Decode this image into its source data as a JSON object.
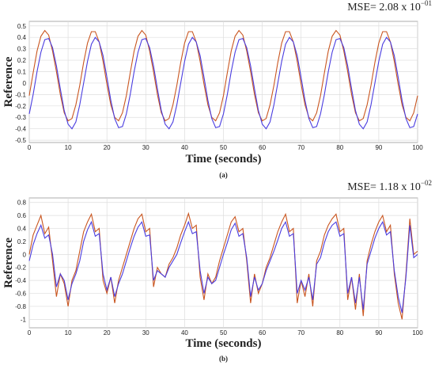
{
  "chart_data": [
    {
      "type": "line",
      "title": "MSE= 2.08 x 10",
      "title_exponent": "−01",
      "xlabel": "Time (seconds)",
      "ylabel": "Reference",
      "caption": "(a)",
      "x": [
        0,
        1,
        2,
        3,
        4,
        5,
        6,
        7,
        8,
        9,
        10,
        11,
        12,
        13,
        14,
        15,
        16,
        17,
        18,
        19,
        20,
        21,
        22,
        23,
        24,
        25,
        26,
        27,
        28,
        29,
        30,
        31,
        32,
        33,
        34,
        35,
        36,
        37,
        38,
        39,
        40,
        41,
        42,
        43,
        44,
        45,
        46,
        47,
        48,
        49,
        50,
        51,
        52,
        53,
        54,
        55,
        56,
        57,
        58,
        59,
        60,
        61,
        62,
        63,
        64,
        65,
        66,
        67,
        68,
        69,
        70,
        71,
        72,
        73,
        74,
        75,
        76,
        77,
        78,
        79,
        80,
        81,
        82,
        83,
        84,
        85,
        86,
        87,
        88,
        89,
        90,
        91,
        92,
        93,
        94,
        95,
        96,
        97,
        98,
        99,
        100
      ],
      "series": [
        {
          "color": "#c9551f",
          "values": [
            -0.11,
            0.09,
            0.28,
            0.41,
            0.46,
            0.42,
            0.28,
            0.1,
            -0.1,
            -0.26,
            -0.33,
            -0.31,
            -0.19,
            -0.02,
            0.18,
            0.35,
            0.45,
            0.45,
            0.36,
            0.19,
            -0.01,
            -0.19,
            -0.3,
            -0.33,
            -0.26,
            -0.11,
            0.09,
            0.28,
            0.41,
            0.46,
            0.42,
            0.28,
            0.1,
            -0.1,
            -0.26,
            -0.33,
            -0.31,
            -0.19,
            -0.02,
            0.18,
            0.35,
            0.45,
            0.45,
            0.36,
            0.19,
            -0.01,
            -0.19,
            -0.3,
            -0.33,
            -0.26,
            -0.11,
            0.09,
            0.28,
            0.41,
            0.46,
            0.42,
            0.28,
            0.1,
            -0.1,
            -0.26,
            -0.33,
            -0.31,
            -0.19,
            -0.02,
            0.18,
            0.35,
            0.45,
            0.45,
            0.36,
            0.19,
            -0.01,
            -0.19,
            -0.3,
            -0.33,
            -0.26,
            -0.11,
            0.09,
            0.28,
            0.41,
            0.46,
            0.42,
            0.28,
            0.1,
            -0.1,
            -0.26,
            -0.33,
            -0.31,
            -0.19,
            -0.02,
            0.18,
            0.35,
            0.45,
            0.45,
            0.36,
            0.19,
            -0.01,
            -0.19,
            -0.3,
            -0.33,
            -0.26,
            -0.11
          ]
        },
        {
          "color": "#4a3de0",
          "values": [
            -0.27,
            -0.1,
            0.1,
            0.27,
            0.38,
            0.39,
            0.31,
            0.15,
            -0.05,
            -0.24,
            -0.36,
            -0.4,
            -0.34,
            -0.19,
            0,
            0.19,
            0.34,
            0.4,
            0.36,
            0.24,
            0.05,
            -0.15,
            -0.31,
            -0.39,
            -0.38,
            -0.27,
            -0.1,
            0.1,
            0.27,
            0.38,
            0.39,
            0.31,
            0.15,
            -0.05,
            -0.24,
            -0.36,
            -0.4,
            -0.34,
            -0.19,
            0,
            0.19,
            0.34,
            0.4,
            0.36,
            0.24,
            0.05,
            -0.15,
            -0.31,
            -0.39,
            -0.38,
            -0.27,
            -0.1,
            0.1,
            0.27,
            0.38,
            0.39,
            0.31,
            0.15,
            -0.05,
            -0.24,
            -0.36,
            -0.4,
            -0.34,
            -0.19,
            0,
            0.19,
            0.34,
            0.4,
            0.36,
            0.24,
            0.05,
            -0.15,
            -0.31,
            -0.39,
            -0.38,
            -0.27,
            -0.1,
            0.1,
            0.27,
            0.38,
            0.39,
            0.31,
            0.15,
            -0.05,
            -0.24,
            -0.36,
            -0.4,
            -0.34,
            -0.19,
            0,
            0.19,
            0.34,
            0.4,
            0.36,
            0.24,
            0.05,
            -0.15,
            -0.31,
            -0.39,
            -0.38,
            -0.27
          ]
        }
      ],
      "xlim": [
        0,
        100
      ],
      "xticks": [
        0,
        10,
        20,
        30,
        40,
        50,
        60,
        70,
        80,
        90,
        100
      ],
      "ylim": [
        -0.52,
        0.54
      ],
      "yticks": [
        -0.5,
        -0.4,
        -0.3,
        -0.2,
        -0.1,
        0,
        0.1,
        0.2,
        0.3,
        0.4,
        0.5
      ],
      "grid": true
    },
    {
      "type": "line",
      "title": "MSE= 1.18 x 10",
      "title_exponent": "−02",
      "xlabel": "Time (seconds)",
      "ylabel": "Reference",
      "caption": "(b)",
      "x": [
        0,
        1,
        2,
        3,
        4,
        5,
        6,
        7,
        8,
        9,
        10,
        11,
        12,
        13,
        14,
        15,
        16,
        17,
        18,
        19,
        20,
        21,
        22,
        23,
        24,
        25,
        26,
        27,
        28,
        29,
        30,
        31,
        32,
        33,
        34,
        35,
        36,
        37,
        38,
        39,
        40,
        41,
        42,
        43,
        44,
        45,
        46,
        47,
        48,
        49,
        50,
        51,
        52,
        53,
        54,
        55,
        56,
        57,
        58,
        59,
        60,
        61,
        62,
        63,
        64,
        65,
        66,
        67,
        68,
        69,
        70,
        71,
        72,
        73,
        74,
        75,
        76,
        77,
        78,
        79,
        80,
        81,
        82,
        83,
        84,
        85,
        86,
        87,
        88,
        89,
        90,
        91,
        92,
        93,
        94,
        95,
        96,
        97,
        98,
        99,
        100
      ],
      "series": [
        {
          "color": "#c9551f",
          "values": [
            0.0,
            0.3,
            0.45,
            0.6,
            0.32,
            0.42,
            -0.1,
            -0.65,
            -0.3,
            -0.45,
            -0.8,
            -0.4,
            -0.25,
            0.05,
            0.35,
            0.5,
            0.62,
            0.35,
            0.4,
            -0.4,
            -0.6,
            -0.35,
            -0.75,
            -0.4,
            -0.2,
            0.0,
            0.2,
            0.4,
            0.55,
            0.62,
            0.35,
            0.4,
            -0.5,
            -0.2,
            -0.3,
            -0.35,
            -0.15,
            -0.05,
            0.1,
            0.3,
            0.45,
            0.63,
            0.4,
            0.45,
            -0.35,
            -0.7,
            -0.3,
            -0.45,
            -0.35,
            -0.1,
            0.1,
            0.3,
            0.5,
            0.58,
            0.35,
            0.4,
            -0.1,
            -0.75,
            -0.3,
            -0.6,
            -0.45,
            -0.2,
            -0.05,
            0.15,
            0.35,
            0.5,
            0.62,
            0.35,
            0.4,
            -0.75,
            -0.4,
            -0.65,
            -0.3,
            -0.8,
            -0.1,
            0.05,
            0.3,
            0.45,
            0.55,
            0.62,
            0.35,
            0.4,
            -0.7,
            -0.35,
            -0.85,
            -0.3,
            -0.95,
            -0.1,
            0.15,
            0.35,
            0.5,
            0.6,
            0.35,
            0.45,
            -0.3,
            -0.75,
            -1.0,
            -0.3,
            0.55,
            0.0,
            0.05
          ]
        },
        {
          "color": "#4a3de0",
          "values": [
            -0.1,
            0.15,
            0.32,
            0.45,
            0.25,
            0.3,
            0.0,
            -0.5,
            -0.3,
            -0.4,
            -0.7,
            -0.45,
            -0.3,
            -0.1,
            0.2,
            0.38,
            0.5,
            0.28,
            0.32,
            -0.3,
            -0.55,
            -0.35,
            -0.65,
            -0.45,
            -0.3,
            -0.1,
            0.1,
            0.28,
            0.42,
            0.5,
            0.28,
            0.3,
            -0.4,
            -0.25,
            -0.3,
            -0.35,
            -0.2,
            -0.1,
            0.0,
            0.18,
            0.35,
            0.5,
            0.32,
            0.35,
            -0.25,
            -0.6,
            -0.35,
            -0.45,
            -0.4,
            -0.2,
            0.0,
            0.18,
            0.38,
            0.48,
            0.28,
            0.32,
            -0.05,
            -0.65,
            -0.35,
            -0.55,
            -0.45,
            -0.25,
            -0.1,
            0.05,
            0.22,
            0.4,
            0.5,
            0.28,
            0.32,
            -0.6,
            -0.4,
            -0.55,
            -0.35,
            -0.7,
            -0.15,
            -0.05,
            0.18,
            0.35,
            0.45,
            0.5,
            0.28,
            0.32,
            -0.6,
            -0.35,
            -0.75,
            -0.35,
            -0.85,
            -0.15,
            0.05,
            0.25,
            0.4,
            0.5,
            0.3,
            0.35,
            -0.25,
            -0.65,
            -0.9,
            -0.35,
            0.45,
            -0.05,
            0.0
          ]
        }
      ],
      "xlim": [
        0,
        100
      ],
      "xticks": [
        0,
        10,
        20,
        30,
        40,
        50,
        60,
        70,
        80,
        90,
        100
      ],
      "ylim": [
        -1.13,
        0.87
      ],
      "yticks": [
        -1,
        -0.8,
        -0.6,
        -0.4,
        -0.2,
        0,
        0.2,
        0.4,
        0.6,
        0.8
      ],
      "grid": true
    }
  ]
}
